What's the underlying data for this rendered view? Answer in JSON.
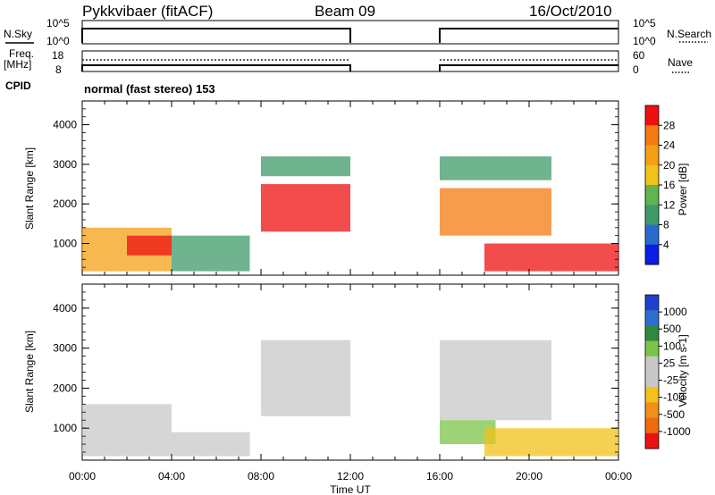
{
  "header": {
    "station": "Pykkvibaer (fitACF)",
    "beam": "Beam 09",
    "date": "16/Oct/2010"
  },
  "top_panels": {
    "nsky_label": "N.Sky",
    "nsky_ticks": [
      "10^5",
      "10^0"
    ],
    "nsearch_label": "N.Search",
    "nsearch_ticks": [
      "10^5",
      "10^0"
    ],
    "freq_label": "Freq.",
    "freq_unit": "[MHz]",
    "freq_ticks": [
      "18",
      "8"
    ],
    "nave_label": "Nave",
    "nave_ticks": [
      "60",
      "0"
    ],
    "cpid_label": "CPID",
    "cpid_value": "normal (fast stereo) 153"
  },
  "time_axis": {
    "title": "Time UT",
    "ticks": [
      "00:00",
      "04:00",
      "08:00",
      "12:00",
      "16:00",
      "20:00",
      "00:00"
    ],
    "range_hours": [
      0,
      24
    ],
    "data_gap_hours": [
      12,
      16
    ]
  },
  "colors": {
    "power_scale": [
      "#0a1ee6",
      "#2a6ad0",
      "#3f9a6a",
      "#62b44e",
      "#f0c21a",
      "#f4a015",
      "#f47a12",
      "#ee1010"
    ],
    "velocity_scale": [
      "#1f3fd0",
      "#2d6ecf",
      "#2f8a3f",
      "#7cc448",
      "#c8c8c8",
      "#c8c8c8",
      "#f0c21a",
      "#f0901a",
      "#f06a12",
      "#e81212"
    ]
  },
  "chart_data": [
    {
      "type": "heatmap",
      "title": "",
      "xlabel": "",
      "ylabel": "Slant Range [km]",
      "ylim": [
        200,
        4600
      ],
      "yticks": [
        "1000",
        "2000",
        "3000",
        "4000"
      ],
      "colorbar": {
        "label": "Power [dB]",
        "ticks": [
          "4",
          "8",
          "12",
          "16",
          "20",
          "24",
          "28"
        ],
        "range": [
          0,
          32
        ]
      },
      "echo_regions": [
        {
          "t": [
            0.0,
            4.0
          ],
          "range": [
            300,
            1400
          ],
          "power": 20
        },
        {
          "t": [
            2.0,
            4.0
          ],
          "range": [
            700,
            1200
          ],
          "power": 28
        },
        {
          "t": [
            4.0,
            7.5
          ],
          "range": [
            300,
            1200
          ],
          "power": 8
        },
        {
          "t": [
            8.0,
            12.0
          ],
          "range": [
            1300,
            2500
          ],
          "power": 28
        },
        {
          "t": [
            8.0,
            12.0
          ],
          "range": [
            2700,
            3200
          ],
          "power": 8
        },
        {
          "t": [
            16.0,
            21.0
          ],
          "range": [
            1200,
            2400
          ],
          "power": 24
        },
        {
          "t": [
            16.0,
            21.0
          ],
          "range": [
            2600,
            3200
          ],
          "power": 8
        },
        {
          "t": [
            18.0,
            24.0
          ],
          "range": [
            300,
            1000
          ],
          "power": 28
        }
      ]
    },
    {
      "type": "heatmap",
      "title": "",
      "xlabel": "Time UT",
      "ylabel": "Slant Range [km]",
      "ylim": [
        200,
        4600
      ],
      "yticks": [
        "1000",
        "2000",
        "3000",
        "4000"
      ],
      "colorbar": {
        "label": "Velocity [m s-1]",
        "ticks": [
          "1000",
          "500",
          "100",
          "25",
          "-25",
          "-100",
          "-500",
          "-1000"
        ],
        "range": [
          -1200,
          1200
        ]
      },
      "echo_regions": [
        {
          "t": [
            0.0,
            4.0
          ],
          "range": [
            300,
            1600
          ],
          "velocity": -200
        },
        {
          "t": [
            4.0,
            7.5
          ],
          "range": [
            300,
            900
          ],
          "velocity": 0
        },
        {
          "t": [
            8.0,
            12.0
          ],
          "range": [
            1300,
            3200
          ],
          "velocity": 0
        },
        {
          "t": [
            16.0,
            21.0
          ],
          "range": [
            1200,
            3200
          ],
          "velocity": 0
        },
        {
          "t": [
            16.0,
            18.5
          ],
          "range": [
            600,
            1200
          ],
          "velocity": 300
        },
        {
          "t": [
            18.0,
            24.0
          ],
          "range": [
            300,
            1000
          ],
          "velocity": -300
        }
      ]
    }
  ]
}
